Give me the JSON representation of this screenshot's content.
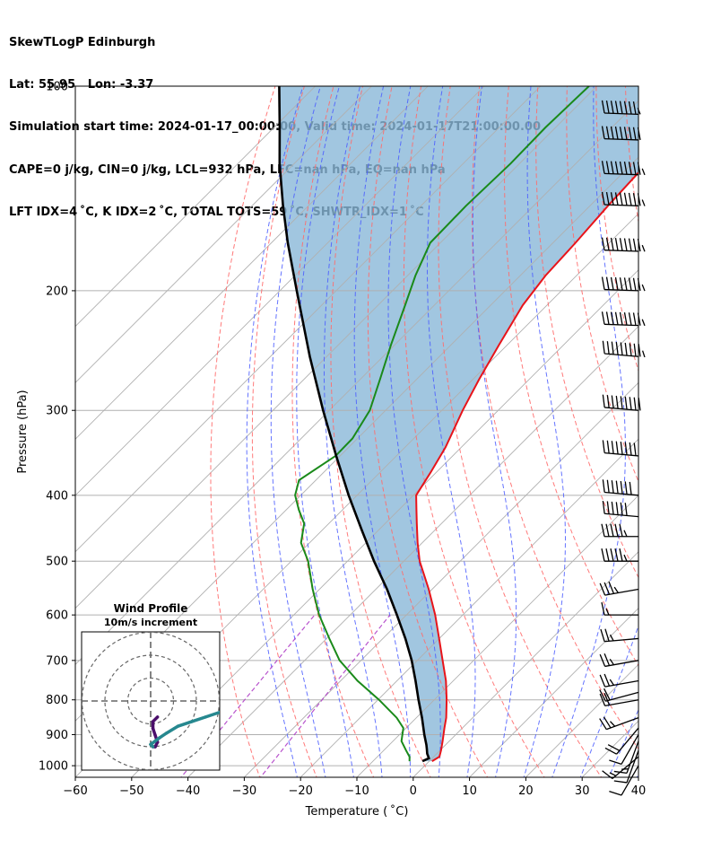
{
  "header": {
    "line1": "SkewTLogP Edinburgh",
    "line2": "Lat: 55.95   Lon: -3.37",
    "line3": "Simulation start time: 2024-01-17_00:00:00, Valid time: 2024-01-17T21:00:00.00",
    "line4": "CAPE=0 j/kg, CIN=0 j/kg, LCL=932 hPa, LFC=nan hPa, EQ=nan hPa",
    "line5": "LFT IDX=4 ˚C, K IDX=2 ˚C, TOTAL TOTS=59 ˚C, SHWTR_IDX=1 ˚C"
  },
  "colors": {
    "temperature": "#e8141a",
    "dewpoint": "#1a8a1a",
    "parcel": "#000000",
    "cape_fill": "#8ab8d8",
    "dry_adiabat": "#ff6b6b",
    "moist_adiabat": "#4a5cff",
    "mixing_ratio": "#b040c8",
    "isotherm": "#b0b0b0",
    "hodograph_low": "#4b0f6b",
    "hodograph_high": "#26888f"
  },
  "chart_data": {
    "type": "line",
    "title": "",
    "xlabel": "Temperature ( ˚C)",
    "ylabel": "Pressure (hPa)",
    "xlim": [
      -60,
      40
    ],
    "ylim": [
      1040,
      100
    ],
    "y_scale": "log",
    "grid": true,
    "x_ticks": [
      "−60",
      "−50",
      "−40",
      "−30",
      "−20",
      "−10",
      "0",
      "10",
      "20",
      "30",
      "40"
    ],
    "x_tick_values": [
      -60,
      -50,
      -40,
      -30,
      -20,
      -10,
      0,
      10,
      20,
      30,
      40
    ],
    "y_ticks": [
      "100",
      "200",
      "300",
      "400",
      "500",
      "600",
      "700",
      "800",
      "900",
      "1000"
    ],
    "y_tick_values": [
      100,
      200,
      300,
      400,
      500,
      600,
      700,
      800,
      900,
      1000
    ],
    "series": [
      {
        "role": "temperature",
        "pressure": [
          985,
          970,
          950,
          920,
          880,
          850,
          800,
          750,
          700,
          650,
          600,
          550,
          500,
          470,
          440,
          420,
          400,
          370,
          340,
          300,
          270,
          240,
          210,
          190,
          170,
          150,
          130,
          115,
          100
        ],
        "temperature": [
          0.5,
          1.0,
          0.2,
          -1.2,
          -3.2,
          -4.7,
          -7.8,
          -11.3,
          -15.5,
          -20.0,
          -24.9,
          -30.6,
          -37.2,
          -40.8,
          -44.4,
          -46.9,
          -49.5,
          -51.0,
          -52.8,
          -56.3,
          -58.9,
          -61.5,
          -64.3,
          -65.5,
          -66.0,
          -66.8,
          -67.4,
          -67.8,
          -68.0
        ]
      },
      {
        "role": "dewpoint",
        "pressure": [
          985,
          970,
          950,
          920,
          880,
          850,
          800,
          750,
          700,
          650,
          600,
          550,
          500,
          470,
          440,
          420,
          400,
          380,
          350,
          330,
          300,
          270,
          240,
          210,
          190,
          170,
          150,
          130,
          115,
          100
        ],
        "temperature": [
          -3.5,
          -4.3,
          -6.0,
          -8.5,
          -10.5,
          -13.5,
          -19.8,
          -27.0,
          -33.8,
          -39.5,
          -45.5,
          -51.2,
          -57.0,
          -61.5,
          -64.4,
          -67.8,
          -71.0,
          -73.0,
          -70.8,
          -70.9,
          -72.8,
          -76.5,
          -80.7,
          -85.2,
          -88.6,
          -91.8,
          -92.0,
          -91.6,
          -91.8,
          -91.4
        ]
      },
      {
        "role": "parcel",
        "pressure": [
          985,
          975,
          960,
          945,
          932,
          900,
          850,
          800,
          750,
          700,
          650,
          600,
          550,
          500,
          450,
          400,
          350,
          300,
          250,
          200,
          170,
          150,
          130,
          115,
          100
        ],
        "temperature": [
          -1.2,
          -0.6,
          -1.7,
          -2.6,
          -3.4,
          -5.6,
          -9.0,
          -12.8,
          -16.7,
          -21.0,
          -26.0,
          -31.7,
          -38.0,
          -45.3,
          -53.0,
          -61.5,
          -70.7,
          -81.1,
          -93.0,
          -107.0,
          -117.1,
          -124.5,
          -132.6,
          -139.0,
          -146.4
        ]
      }
    ],
    "wind_barbs": {
      "pressure": [
        1000,
        970,
        950,
        920,
        900,
        880,
        850,
        800,
        780,
        750,
        700,
        650,
        600,
        550,
        500,
        460,
        430,
        400,
        350,
        300,
        250,
        225,
        200,
        175,
        150,
        135,
        120,
        110
      ],
      "speed_kt": [
        10,
        15,
        10,
        15,
        10,
        20,
        25,
        20,
        20,
        25,
        25,
        25,
        15,
        35,
        55,
        55,
        60,
        70,
        80,
        90,
        95,
        95,
        95,
        95,
        95,
        95,
        90,
        85
      ],
      "direction_deg": [
        210,
        230,
        200,
        200,
        210,
        220,
        250,
        260,
        255,
        260,
        260,
        265,
        270,
        260,
        270,
        270,
        275,
        275,
        275,
        275,
        275,
        272,
        272,
        272,
        272,
        272,
        272,
        272
      ]
    },
    "hodograph": {
      "title": "Wind Profile",
      "subtitle": "10m/s increment",
      "ring_increment_ms": 10,
      "u_ms": [
        3,
        1,
        1,
        2,
        3,
        2,
        1,
        0,
        4,
        7,
        12,
        18,
        24,
        30
      ],
      "v_ms": [
        7,
        9,
        12,
        15,
        18,
        20,
        20,
        19,
        16,
        14,
        11,
        9,
        7,
        5
      ],
      "segments_color_index": [
        0,
        0,
        0,
        0,
        0,
        0,
        0,
        1,
        1,
        1,
        1,
        1,
        1,
        1
      ]
    }
  }
}
